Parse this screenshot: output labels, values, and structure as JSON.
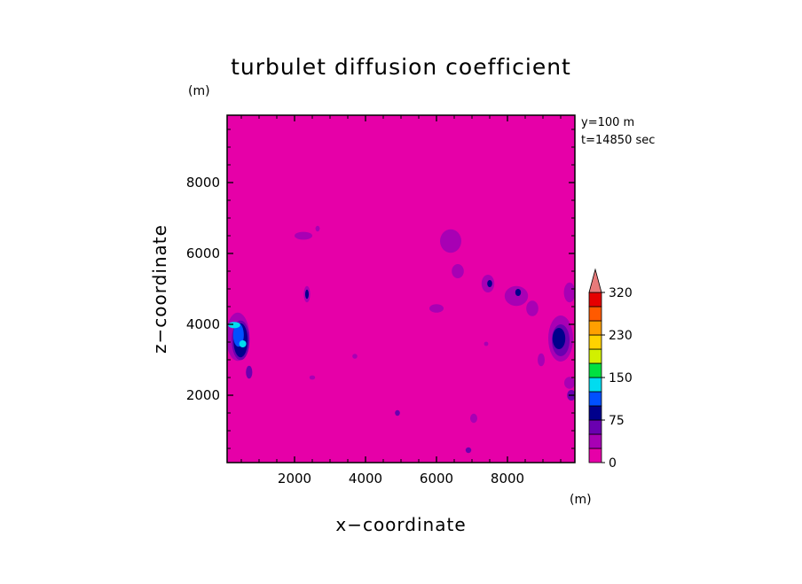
{
  "chart_data": {
    "type": "heatmap",
    "title": "turbulet diffusion coefficient",
    "xlabel": "x−coordinate",
    "ylabel": "z−coordinate",
    "x_unit": "(m)",
    "y_unit": "(m)",
    "xlim": [
      100,
      9900
    ],
    "ylim": [
      100,
      9900
    ],
    "xticks": [
      {
        "value": 2000,
        "label": "2000"
      },
      {
        "value": 4000,
        "label": "4000"
      },
      {
        "value": 6000,
        "label": "6000"
      },
      {
        "value": 8000,
        "label": "8000"
      }
    ],
    "yticks": [
      {
        "value": 2000,
        "label": "2000"
      },
      {
        "value": 4000,
        "label": "4000"
      },
      {
        "value": 6000,
        "label": "6000"
      },
      {
        "value": 8000,
        "label": "8000"
      }
    ],
    "info_lines": [
      "y=100 m",
      "t=14850 sec"
    ],
    "background_level": 0,
    "colorbar": {
      "levels": [
        0,
        25,
        50,
        75,
        100,
        125,
        150,
        175,
        200,
        230,
        260,
        290,
        320
      ],
      "labels": [
        {
          "value": 0,
          "label": "0"
        },
        {
          "value": 75,
          "label": "75"
        },
        {
          "value": 150,
          "label": "150"
        },
        {
          "value": 230,
          "label": "230"
        },
        {
          "value": 320,
          "label": "320"
        }
      ],
      "colors": [
        "#e600a8",
        "#a800b4",
        "#6a00b0",
        "#00008c",
        "#0050ff",
        "#00dcf0",
        "#00e040",
        "#d2f000",
        "#ffd200",
        "#ffa000",
        "#ff5a00",
        "#e60000"
      ],
      "extend_color": "#e87a7a"
    },
    "features": [
      {
        "x": 400,
        "z": 3650,
        "rx": 330,
        "rz": 680,
        "level": 1
      },
      {
        "x": 480,
        "z": 3550,
        "rx": 250,
        "rz": 560,
        "level": 2
      },
      {
        "x": 480,
        "z": 3550,
        "rx": 200,
        "rz": 480,
        "level": 3
      },
      {
        "x": 420,
        "z": 3700,
        "rx": 150,
        "rz": 330,
        "level": 4
      },
      {
        "x": 300,
        "z": 3980,
        "rx": 170,
        "rz": 90,
        "level": 5
      },
      {
        "x": 540,
        "z": 3450,
        "rx": 100,
        "rz": 100,
        "level": 5
      },
      {
        "x": 720,
        "z": 2650,
        "rx": 90,
        "rz": 180,
        "level": 2
      },
      {
        "x": 2350,
        "z": 4850,
        "rx": 90,
        "rz": 230,
        "level": 1
      },
      {
        "x": 2350,
        "z": 4850,
        "rx": 50,
        "rz": 130,
        "level": 3
      },
      {
        "x": 2250,
        "z": 6500,
        "rx": 250,
        "rz": 110,
        "level": 1
      },
      {
        "x": 2650,
        "z": 6700,
        "rx": 60,
        "rz": 80,
        "level": 1
      },
      {
        "x": 2500,
        "z": 2500,
        "rx": 80,
        "rz": 60,
        "level": 1
      },
      {
        "x": 3700,
        "z": 3100,
        "rx": 70,
        "rz": 70,
        "level": 1
      },
      {
        "x": 4900,
        "z": 1500,
        "rx": 70,
        "rz": 80,
        "level": 2
      },
      {
        "x": 6000,
        "z": 4450,
        "rx": 200,
        "rz": 120,
        "level": 1
      },
      {
        "x": 6400,
        "z": 6350,
        "rx": 300,
        "rz": 330,
        "level": 1
      },
      {
        "x": 6600,
        "z": 5500,
        "rx": 170,
        "rz": 200,
        "level": 1
      },
      {
        "x": 7050,
        "z": 1350,
        "rx": 100,
        "rz": 130,
        "level": 1
      },
      {
        "x": 6900,
        "z": 450,
        "rx": 80,
        "rz": 80,
        "level": 2
      },
      {
        "x": 7450,
        "z": 5150,
        "rx": 180,
        "rz": 250,
        "level": 1
      },
      {
        "x": 7500,
        "z": 5150,
        "rx": 70,
        "rz": 100,
        "level": 3
      },
      {
        "x": 7400,
        "z": 3450,
        "rx": 60,
        "rz": 60,
        "level": 1
      },
      {
        "x": 8250,
        "z": 4800,
        "rx": 330,
        "rz": 280,
        "level": 1
      },
      {
        "x": 8300,
        "z": 4900,
        "rx": 80,
        "rz": 100,
        "level": 3
      },
      {
        "x": 8700,
        "z": 4450,
        "rx": 170,
        "rz": 220,
        "level": 1
      },
      {
        "x": 8950,
        "z": 3000,
        "rx": 100,
        "rz": 180,
        "level": 1
      },
      {
        "x": 9500,
        "z": 3600,
        "rx": 350,
        "rz": 650,
        "level": 1
      },
      {
        "x": 9500,
        "z": 3550,
        "rx": 250,
        "rz": 450,
        "level": 2
      },
      {
        "x": 9450,
        "z": 3600,
        "rx": 180,
        "rz": 300,
        "level": 3
      },
      {
        "x": 9750,
        "z": 4900,
        "rx": 160,
        "rz": 280,
        "level": 1
      },
      {
        "x": 9750,
        "z": 2350,
        "rx": 150,
        "rz": 170,
        "level": 1
      },
      {
        "x": 9800,
        "z": 2000,
        "rx": 120,
        "rz": 150,
        "level": 2
      }
    ]
  }
}
